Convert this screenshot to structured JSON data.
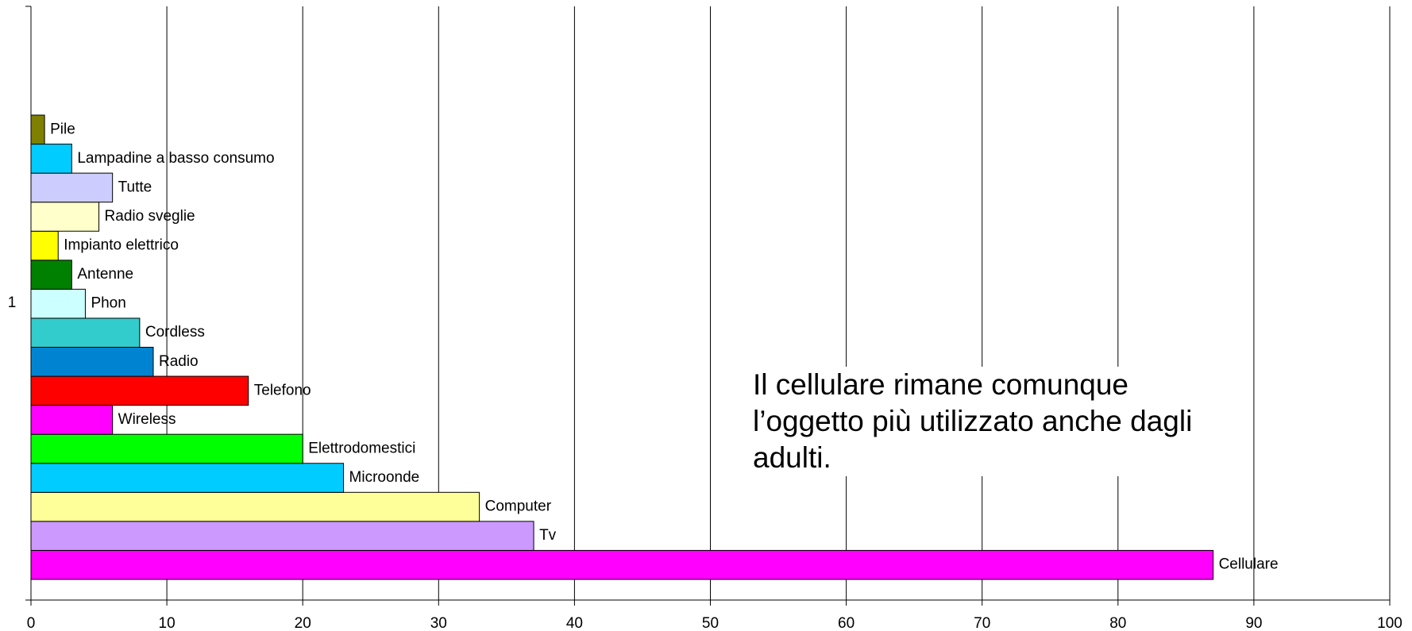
{
  "chart_data": {
    "type": "bar",
    "orientation": "horizontal",
    "categories": [
      "1"
    ],
    "series": [
      {
        "name": "Cellulare",
        "color": "#ff00ff",
        "values": [
          87
        ]
      },
      {
        "name": "Tv",
        "color": "#cc99ff",
        "values": [
          37
        ]
      },
      {
        "name": "Computer",
        "color": "#ffff99",
        "values": [
          33
        ]
      },
      {
        "name": "Microonde",
        "color": "#00ccff",
        "values": [
          23
        ]
      },
      {
        "name": "Elettrodomestici",
        "color": "#00ff00",
        "values": [
          20
        ]
      },
      {
        "name": "Wireless",
        "color": "#ff00ff",
        "values": [
          6
        ]
      },
      {
        "name": "Telefono",
        "color": "#ff0000",
        "values": [
          16
        ]
      },
      {
        "name": "Radio",
        "color": "#0084d1",
        "values": [
          9
        ]
      },
      {
        "name": "Cordless",
        "color": "#33cccc",
        "values": [
          8
        ]
      },
      {
        "name": "Phon",
        "color": "#ccffff",
        "values": [
          4
        ]
      },
      {
        "name": "Antenne",
        "color": "#008000",
        "values": [
          3
        ]
      },
      {
        "name": "Impianto elettrico",
        "color": "#ffff00",
        "values": [
          2
        ]
      },
      {
        "name": "Radio sveglie",
        "color": "#ffffcc",
        "values": [
          5
        ]
      },
      {
        "name": "Tutte",
        "color": "#ccccff",
        "values": [
          6
        ]
      },
      {
        "name": "Lampadine a basso consumo",
        "color": "#00ccff",
        "values": [
          3
        ]
      },
      {
        "name": "Pile",
        "color": "#808000",
        "values": [
          1
        ]
      }
    ],
    "xlim": [
      0,
      100
    ],
    "xticks": [
      0,
      10,
      20,
      30,
      40,
      50,
      60,
      70,
      80,
      90,
      100
    ],
    "grid": true,
    "annotation": "Il cellulare rimane comunque l’oggetto più utilizzato anche dagli adulti."
  }
}
